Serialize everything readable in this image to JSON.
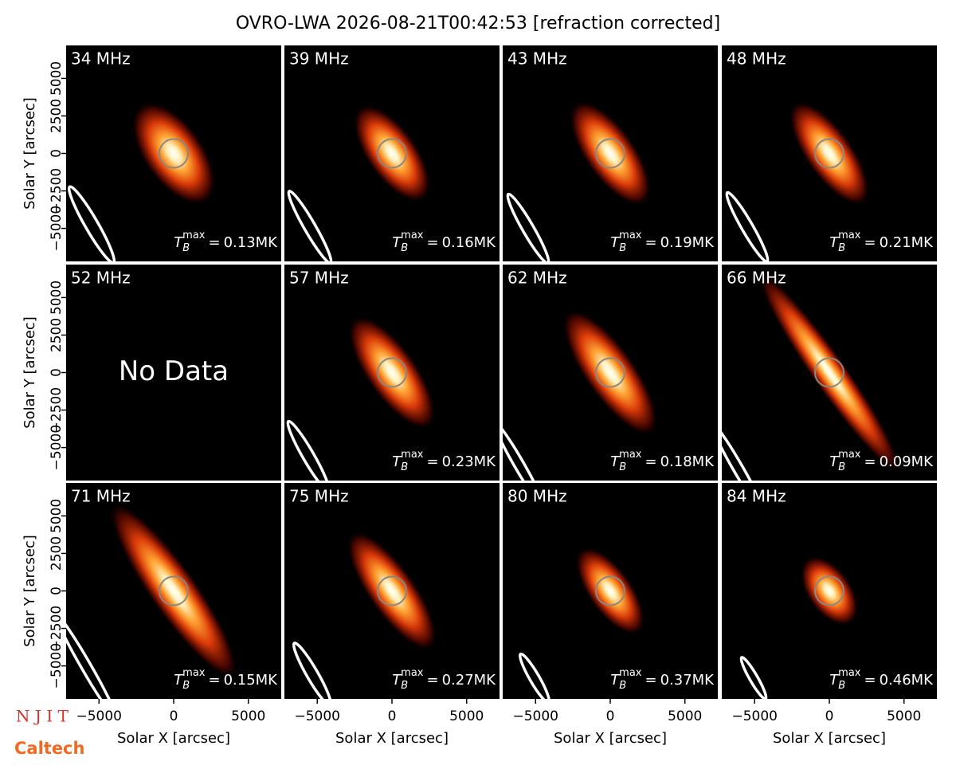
{
  "title": "OVRO-LWA 2026-08-21T00:42:53 [refraction corrected]",
  "tb_label": {
    "symbol": "T",
    "sub": "B",
    "sup": "max",
    "eq": "="
  },
  "logos": [
    "N J I T",
    "Caltech"
  ],
  "chart_data": [
    {
      "type": "image",
      "title": "34 MHz",
      "tb_max": "0.13MK",
      "xlim": [
        -7200,
        7200
      ],
      "ylim": [
        -7200,
        7200
      ],
      "ylabel": "Solar Y [arcsec]",
      "yticks": [
        {
          "value": -5000,
          "label": "−5000"
        },
        {
          "value": -2500,
          "label": "−2500"
        },
        0,
        2500,
        5000
      ]
    },
    {
      "type": "image",
      "title": "39 MHz",
      "tb_max": "0.16MK",
      "xlim": [
        -7200,
        7200
      ],
      "ylim": [
        -7200,
        7200
      ]
    },
    {
      "type": "image",
      "title": "43 MHz",
      "tb_max": "0.19MK",
      "xlim": [
        -7200,
        7200
      ],
      "ylim": [
        -7200,
        7200
      ]
    },
    {
      "type": "image",
      "title": "48 MHz",
      "tb_max": "0.21MK",
      "xlim": [
        -7200,
        7200
      ],
      "ylim": [
        -7200,
        7200
      ]
    },
    {
      "type": "image",
      "title": "52 MHz",
      "note": "No Data",
      "xlim": [
        -7200,
        7200
      ],
      "ylim": [
        -7200,
        7200
      ],
      "ylabel": "Solar Y [arcsec]",
      "yticks": [
        {
          "value": -5000,
          "label": "−5000"
        },
        {
          "value": -2500,
          "label": "−2500"
        },
        0,
        2500,
        5000
      ]
    },
    {
      "type": "image",
      "title": "57 MHz",
      "tb_max": "0.23MK",
      "xlim": [
        -7200,
        7200
      ],
      "ylim": [
        -7200,
        7200
      ]
    },
    {
      "type": "image",
      "title": "62 MHz",
      "tb_max": "0.18MK",
      "xlim": [
        -7200,
        7200
      ],
      "ylim": [
        -7200,
        7200
      ]
    },
    {
      "type": "image",
      "title": "66 MHz",
      "tb_max": "0.09MK",
      "xlim": [
        -7200,
        7200
      ],
      "ylim": [
        -7200,
        7200
      ]
    },
    {
      "type": "image",
      "title": "71 MHz",
      "tb_max": "0.15MK",
      "xlim": [
        -7200,
        7200
      ],
      "ylim": [
        -7200,
        7200
      ],
      "ylabel": "Solar Y [arcsec]",
      "yticks": [
        {
          "value": -5000,
          "label": "−5000"
        },
        {
          "value": -2500,
          "label": "−2500"
        },
        0,
        2500,
        5000
      ],
      "xlabel": "Solar X [arcsec]",
      "xticks": [
        {
          "value": -5000,
          "label": "−5000"
        },
        0,
        5000
      ]
    },
    {
      "type": "image",
      "title": "75 MHz",
      "tb_max": "0.27MK",
      "xlim": [
        -7200,
        7200
      ],
      "ylim": [
        -7200,
        7200
      ],
      "xlabel": "Solar X [arcsec]",
      "xticks": [
        {
          "value": -5000,
          "label": "−5000"
        },
        0,
        5000
      ]
    },
    {
      "type": "image",
      "title": "80 MHz",
      "tb_max": "0.37MK",
      "xlim": [
        -7200,
        7200
      ],
      "ylim": [
        -7200,
        7200
      ],
      "xlabel": "Solar X [arcsec]",
      "xticks": [
        {
          "value": -5000,
          "label": "−5000"
        },
        0,
        5000
      ]
    },
    {
      "type": "image",
      "title": "84 MHz",
      "tb_max": "0.46MK",
      "xlim": [
        -7200,
        7200
      ],
      "ylim": [
        -7200,
        7200
      ],
      "xlabel": "Solar X [arcsec]",
      "xticks": [
        {
          "value": -5000,
          "label": "−5000"
        },
        0,
        5000
      ]
    }
  ]
}
